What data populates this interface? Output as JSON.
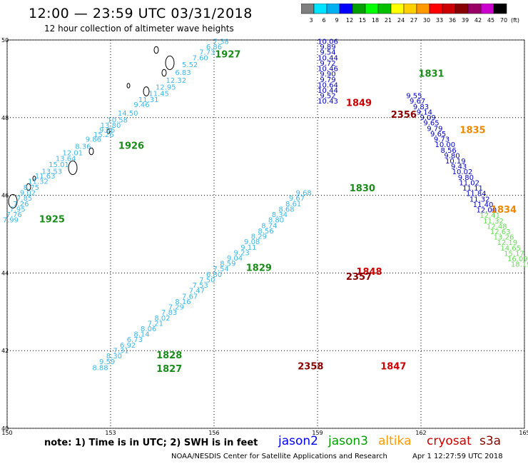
{
  "header": {
    "title": "12:00 — 23:59 UTC 03/31/2018",
    "subtitle": "12 hour collection of altimeter wave heights"
  },
  "colorbar": {
    "unit": "(ft)",
    "ticks": [
      "3",
      "6",
      "9",
      "12",
      "15",
      "18",
      "21",
      "24",
      "27",
      "30",
      "33",
      "36",
      "39",
      "42",
      "45",
      "70"
    ],
    "colors": [
      "#7f7f7f",
      "#00e5ff",
      "#00b0f0",
      "#0000ff",
      "#00a000",
      "#00ff00",
      "#00c000",
      "#ffff00",
      "#ffd000",
      "#ff9900",
      "#ff0000",
      "#cc0000",
      "#880000",
      "#990066",
      "#cc00cc",
      "#000000"
    ]
  },
  "axes": {
    "x_ticks": [
      "150",
      "153",
      "156",
      "159",
      "162",
      "165"
    ],
    "y_ticks": [
      "50",
      "48",
      "46",
      "44",
      "42",
      "40"
    ]
  },
  "tracks": [
    {
      "sat": "cryosat",
      "color": "#3cb8e8",
      "points": [
        [
          156.2,
          49.9,
          "7.38"
        ],
        [
          156.0,
          49.76,
          "6.86"
        ],
        [
          155.8,
          49.62,
          "7.73"
        ],
        [
          155.6,
          49.48,
          "7.60"
        ],
        [
          155.3,
          49.3,
          "5.52"
        ],
        [
          155.1,
          49.1,
          "6.83"
        ],
        [
          154.9,
          48.9,
          "12.32"
        ],
        [
          154.6,
          48.72,
          "12.95"
        ],
        [
          154.4,
          48.56,
          "11.45"
        ],
        [
          154.1,
          48.4,
          "11.31"
        ],
        [
          153.9,
          48.27,
          "9.46"
        ],
        [
          153.5,
          48.05,
          "14.50"
        ],
        [
          153.2,
          47.88,
          "10.58"
        ],
        [
          153.0,
          47.74,
          "13.80"
        ],
        [
          152.9,
          47.62,
          "9.96"
        ],
        [
          152.8,
          47.5,
          "15.26"
        ],
        [
          152.5,
          47.38,
          "9.86"
        ],
        [
          152.2,
          47.2,
          "8.36"
        ],
        [
          151.9,
          47.03,
          "12.01"
        ],
        [
          151.7,
          46.88,
          "13.64"
        ],
        [
          151.5,
          46.73,
          "15.01"
        ],
        [
          151.3,
          46.55,
          "13.53"
        ],
        [
          151.1,
          46.43,
          "11.63"
        ],
        [
          150.9,
          46.3,
          "11.32"
        ],
        [
          150.7,
          46.14,
          "8.75"
        ],
        [
          150.6,
          46.0,
          "9.02"
        ],
        [
          150.5,
          45.86,
          "7.85"
        ],
        [
          150.4,
          45.72,
          "7.26"
        ],
        [
          150.3,
          45.58,
          "7.95"
        ],
        [
          150.2,
          45.44,
          "7.76"
        ],
        [
          150.1,
          45.3,
          "7.99"
        ]
      ]
    },
    {
      "sat": "cryosat",
      "color": "#3cb8e8",
      "points": [
        [
          158.6,
          46.0,
          "9.68"
        ],
        [
          158.4,
          45.86,
          "9.67"
        ],
        [
          158.3,
          45.72,
          "8.61"
        ],
        [
          158.1,
          45.58,
          "8.68"
        ],
        [
          157.9,
          45.44,
          "8.34"
        ],
        [
          157.8,
          45.3,
          "8.80"
        ],
        [
          157.6,
          45.16,
          "8.74"
        ],
        [
          157.5,
          45.02,
          "8.56"
        ],
        [
          157.3,
          44.88,
          "8.29"
        ],
        [
          157.1,
          44.74,
          "9.08"
        ],
        [
          157.0,
          44.6,
          "9.11"
        ],
        [
          156.8,
          44.46,
          "9.23"
        ],
        [
          156.6,
          44.32,
          "9.04"
        ],
        [
          156.4,
          44.18,
          "8.59"
        ],
        [
          156.2,
          44.04,
          "7.54"
        ],
        [
          156.0,
          43.9,
          "6.80"
        ],
        [
          155.8,
          43.76,
          "7.50"
        ],
        [
          155.6,
          43.62,
          "7.53"
        ],
        [
          155.5,
          43.48,
          "7.47"
        ],
        [
          155.3,
          43.34,
          "7.67"
        ],
        [
          155.1,
          43.2,
          "8.16"
        ],
        [
          154.9,
          43.06,
          "7.29"
        ],
        [
          154.7,
          42.92,
          "7.83"
        ],
        [
          154.5,
          42.78,
          "8.02"
        ],
        [
          154.3,
          42.64,
          "7.21"
        ],
        [
          154.1,
          42.5,
          "8.06"
        ],
        [
          153.9,
          42.36,
          "8.14"
        ],
        [
          153.7,
          42.22,
          "6.73"
        ],
        [
          153.5,
          42.08,
          "6.92"
        ],
        [
          153.3,
          41.94,
          "7.31"
        ],
        [
          153.1,
          41.8,
          "8.30"
        ],
        [
          152.9,
          41.65,
          "9.59"
        ],
        [
          152.7,
          41.5,
          "8.88"
        ]
      ]
    },
    {
      "sat": "jason2",
      "color": "#0000c0",
      "points": [
        [
          159.3,
          49.9,
          "10.06"
        ],
        [
          159.3,
          49.76,
          "9.89"
        ],
        [
          159.3,
          49.62,
          "9.54"
        ],
        [
          159.3,
          49.48,
          "10.44"
        ],
        [
          159.3,
          49.34,
          "9.72"
        ],
        [
          159.3,
          49.2,
          "10.46"
        ],
        [
          159.3,
          49.06,
          "9.90"
        ],
        [
          159.3,
          48.92,
          "9.79"
        ],
        [
          159.3,
          48.78,
          "10.64"
        ],
        [
          159.3,
          48.64,
          "10.44"
        ],
        [
          159.3,
          48.5,
          "9.52"
        ],
        [
          159.3,
          48.36,
          "10.43"
        ]
      ]
    },
    {
      "sat": "jason2",
      "color": "#0000c0",
      "points": [
        [
          161.8,
          48.5,
          "9.55"
        ],
        [
          161.9,
          48.36,
          "9.67"
        ],
        [
          162.0,
          48.22,
          "9.83"
        ],
        [
          162.1,
          48.08,
          "9.14"
        ],
        [
          162.2,
          47.94,
          "9.09"
        ],
        [
          162.3,
          47.8,
          "9.65"
        ],
        [
          162.4,
          47.66,
          "9.79"
        ],
        [
          162.5,
          47.52,
          "9.65"
        ],
        [
          162.6,
          47.38,
          "9.73"
        ],
        [
          162.7,
          47.24,
          "10.00"
        ],
        [
          162.8,
          47.1,
          "8.56"
        ],
        [
          162.9,
          46.96,
          "9.80"
        ],
        [
          163.0,
          46.82,
          "10.19"
        ],
        [
          163.1,
          46.68,
          "9.43"
        ],
        [
          163.2,
          46.54,
          "10.02"
        ],
        [
          163.3,
          46.4,
          "9.80"
        ],
        [
          163.4,
          46.26,
          "11.02"
        ],
        [
          163.5,
          46.12,
          "11.11"
        ],
        [
          163.6,
          45.98,
          "11.84"
        ],
        [
          163.7,
          45.84,
          "11.32"
        ],
        [
          163.8,
          45.7,
          "11.40"
        ],
        [
          163.9,
          45.56,
          "12.00"
        ]
      ]
    },
    {
      "sat": "jason3",
      "color": "#66dd55",
      "points": [
        [
          164.0,
          45.42,
          "12.41"
        ],
        [
          164.1,
          45.28,
          "11.32"
        ],
        [
          164.2,
          45.14,
          "12.48"
        ],
        [
          164.3,
          45.0,
          "12.63"
        ],
        [
          164.4,
          44.86,
          "13.26"
        ],
        [
          164.5,
          44.72,
          "12.19"
        ],
        [
          164.6,
          44.58,
          "14.65"
        ],
        [
          164.7,
          44.44,
          "15.17"
        ],
        [
          164.8,
          44.3,
          "16.09"
        ],
        [
          164.9,
          44.16,
          "18.19"
        ]
      ]
    }
  ],
  "pass_labels": [
    {
      "text": "1927",
      "lon": 156.4,
      "lat": 49.55,
      "color": "#1a8c1a"
    },
    {
      "text": "1926",
      "lon": 153.6,
      "lat": 47.2,
      "color": "#1a8c1a"
    },
    {
      "text": "1925",
      "lon": 151.3,
      "lat": 45.3,
      "color": "#1a8c1a"
    },
    {
      "text": "1829",
      "lon": 157.3,
      "lat": 44.05,
      "color": "#1a8c1a"
    },
    {
      "text": "1828",
      "lon": 154.7,
      "lat": 41.8,
      "color": "#1a8c1a"
    },
    {
      "text": "1827",
      "lon": 154.7,
      "lat": 41.45,
      "color": "#1a8c1a"
    },
    {
      "text": "1830",
      "lon": 160.3,
      "lat": 46.1,
      "color": "#1a8c1a"
    },
    {
      "text": "1831",
      "lon": 162.3,
      "lat": 49.05,
      "color": "#1a8c1a"
    },
    {
      "text": "1849",
      "lon": 160.2,
      "lat": 48.3,
      "color": "#cc0000"
    },
    {
      "text": "2356",
      "lon": 161.5,
      "lat": 48.0,
      "color": "#880000"
    },
    {
      "text": "1848",
      "lon": 160.5,
      "lat": 43.95,
      "color": "#cc0000"
    },
    {
      "text": "2357",
      "lon": 160.2,
      "lat": 43.82,
      "color": "#880000"
    },
    {
      "text": "2358",
      "lon": 158.8,
      "lat": 41.52,
      "color": "#880000"
    },
    {
      "text": "1847",
      "lon": 161.2,
      "lat": 41.52,
      "color": "#cc0000"
    },
    {
      "text": "1835",
      "lon": 163.5,
      "lat": 47.6,
      "color": "#ee8800"
    },
    {
      "text": "1834",
      "lon": 164.4,
      "lat": 45.55,
      "color": "#ee8800"
    }
  ],
  "footer": {
    "note": "note: 1) Time is in UTC; 2) SWH is in feet",
    "satellites": [
      {
        "name": "jason2",
        "color": "#0000ff"
      },
      {
        "name": "jason3",
        "color": "#00a000"
      },
      {
        "name": "altika",
        "color": "#ff9900"
      },
      {
        "name": "cryosat",
        "color": "#cc0000"
      },
      {
        "name": "s3a",
        "color": "#880000"
      }
    ],
    "credit": "NOAA/NESDIS Center for Satellite Applications and Research",
    "timestamp": "Apr  1 12:27:59 UTC 2018"
  }
}
